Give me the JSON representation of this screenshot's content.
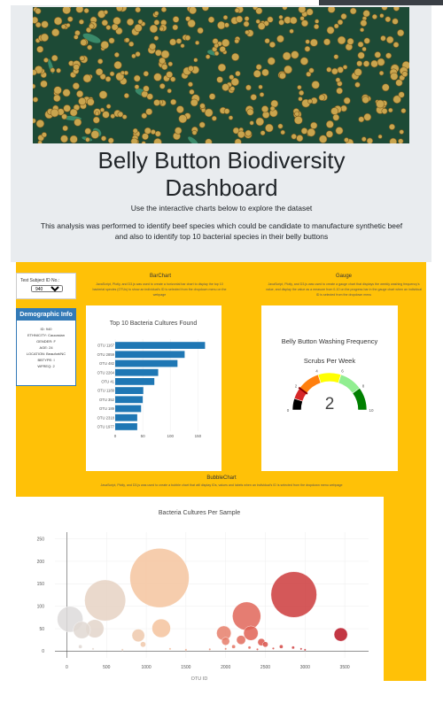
{
  "header": {
    "title_line1": "Belly Button Biodiversity",
    "title_line2": "Dashboard",
    "subtitle": "Use the interactive charts below to explore the dataset",
    "description": "This analysis was performed to identify beef species which could be candidate to manufacture synthetic beef and also to identify top 10 bacterial species in their belly buttons"
  },
  "selector": {
    "label": "Test Subject ID No.:",
    "value": "940"
  },
  "demographic": {
    "title": "Demographic Info",
    "rows": [
      "ID: 940",
      "ETHNICITY: Caucasian",
      "GENDER: F",
      "AGE: 24",
      "LOCATION: Beaufort/NC",
      "BBTYPE: I",
      "WFREQ: 2"
    ]
  },
  "barchart_section": {
    "heading": "BarChart",
    "text": "JavaScript, Plotly, and D3.js was used to create a horizontal bar chart to display the top 10 bacterial species (OTUs) to show an individual's ID is selected from the dropdown menu on the webpage"
  },
  "gauge_section": {
    "heading": "Gauge",
    "text": "JavaScript, Plotly, and D3.js was used to create a gauge chart that displays the weekly washing frequency's value, and display the value as a measure from 0-10 on the progress bar in the gauge chart when an individual ID is selected from the dropdown menu"
  },
  "bubble_section": {
    "heading": "BubbleChart",
    "text": "JavaScript, Plotly, and D3.js was used to create a bubble chart that will display IDs, values and labels when an individual's ID is selected from the dropdown menu webpage"
  },
  "chart_data": [
    {
      "type": "bar",
      "title": "Top 10 Bacteria Cultures Found",
      "orientation": "horizontal",
      "categories": [
        "OTU 1167",
        "OTU 2859",
        "OTU 482",
        "OTU 2264",
        "OTU 41",
        "OTU 1189",
        "OTU 352",
        "OTU 189",
        "OTU 2318",
        "OTU 1977"
      ],
      "values": [
        163,
        126,
        113,
        78,
        71,
        51,
        50,
        47,
        40,
        40
      ],
      "xticks": [
        "0",
        "50",
        "100",
        "150"
      ],
      "xlim": [
        0,
        180
      ],
      "color": "#1f77b4"
    },
    {
      "type": "gauge",
      "title": "Belly Button Washing Frequency",
      "subtitle": "Scrubs Per Week",
      "value": 2,
      "range": [
        0,
        10
      ],
      "tick_labels": [
        "0",
        "2",
        "4",
        "6",
        "8",
        "10"
      ],
      "band_colors": [
        "#000000",
        "#d62728",
        "#ff7f0e",
        "#ffff00",
        "#90ee90",
        "#008000"
      ]
    },
    {
      "type": "bubble",
      "title": "Bacteria Cultures Per Sample",
      "xlabel": "OTU ID",
      "xticks": [
        "0",
        "500",
        "1000",
        "1500",
        "2000",
        "2500",
        "3000",
        "3500"
      ],
      "yticks": [
        "0",
        "50",
        "100",
        "150",
        "200",
        "250"
      ],
      "xlim": [
        -150,
        3800
      ],
      "ylim": [
        -15,
        265
      ],
      "points": [
        {
          "x": 1167,
          "y": 163
        },
        {
          "x": 2859,
          "y": 126
        },
        {
          "x": 482,
          "y": 113
        },
        {
          "x": 2264,
          "y": 78
        },
        {
          "x": 41,
          "y": 71
        },
        {
          "x": 1189,
          "y": 51
        },
        {
          "x": 352,
          "y": 50
        },
        {
          "x": 189,
          "y": 47
        },
        {
          "x": 2318,
          "y": 40
        },
        {
          "x": 1977,
          "y": 40
        },
        {
          "x": 3450,
          "y": 37
        },
        {
          "x": 900,
          "y": 35
        },
        {
          "x": 2194,
          "y": 25
        },
        {
          "x": 2000,
          "y": 22
        },
        {
          "x": 2450,
          "y": 20
        },
        {
          "x": 960,
          "y": 15
        },
        {
          "x": 2500,
          "y": 15
        },
        {
          "x": 2100,
          "y": 10
        },
        {
          "x": 2700,
          "y": 10
        },
        {
          "x": 2850,
          "y": 8
        },
        {
          "x": 2300,
          "y": 8
        },
        {
          "x": 1300,
          "y": 5
        },
        {
          "x": 2950,
          "y": 5
        },
        {
          "x": 170,
          "y": 10
        },
        {
          "x": 330,
          "y": 5
        },
        {
          "x": 2000,
          "y": 5
        },
        {
          "x": 1500,
          "y": 3
        },
        {
          "x": 1800,
          "y": 4
        },
        {
          "x": 2600,
          "y": 6
        },
        {
          "x": 3000,
          "y": 3
        },
        {
          "x": 700,
          "y": 3
        },
        {
          "x": 2400,
          "y": 4
        }
      ]
    }
  ]
}
